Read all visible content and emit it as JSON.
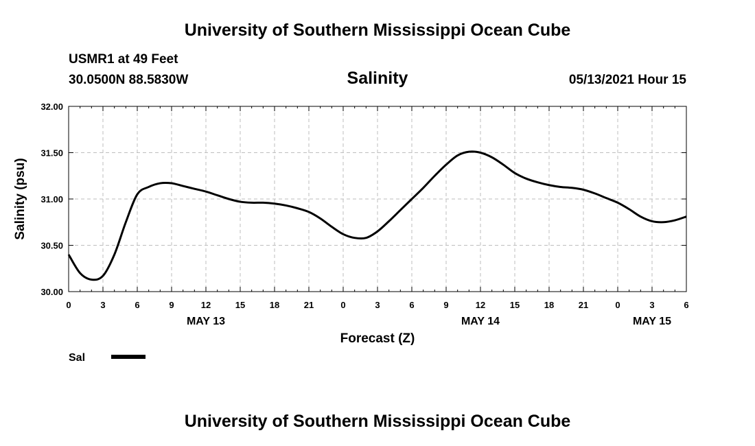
{
  "header": {
    "title": "University of Southern Mississippi Ocean Cube",
    "station": "USMR1 at 49 Feet",
    "coords": "30.0500N  88.5830W",
    "parameter": "Salinity",
    "datetime": "05/13/2021 Hour 15"
  },
  "footer": {
    "title": "University of Southern Mississippi Ocean Cube"
  },
  "chart_data": {
    "type": "line",
    "title": "Salinity",
    "xlabel": "Forecast (Z)",
    "ylabel": "Salinity (psu)",
    "ylim": [
      30.0,
      32.0
    ],
    "xlim": [
      0,
      54
    ],
    "y_ticks": [
      "30.00",
      "30.50",
      "31.00",
      "31.50",
      "32.00"
    ],
    "x_ticks": [
      {
        "x": 0,
        "label": "0"
      },
      {
        "x": 3,
        "label": "3"
      },
      {
        "x": 6,
        "label": "6"
      },
      {
        "x": 9,
        "label": "9"
      },
      {
        "x": 12,
        "label": "12"
      },
      {
        "x": 15,
        "label": "15"
      },
      {
        "x": 18,
        "label": "18"
      },
      {
        "x": 21,
        "label": "21"
      },
      {
        "x": 24,
        "label": "0"
      },
      {
        "x": 27,
        "label": "3"
      },
      {
        "x": 30,
        "label": "6"
      },
      {
        "x": 33,
        "label": "9"
      },
      {
        "x": 36,
        "label": "12"
      },
      {
        "x": 39,
        "label": "15"
      },
      {
        "x": 42,
        "label": "18"
      },
      {
        "x": 45,
        "label": "21"
      },
      {
        "x": 48,
        "label": "0"
      },
      {
        "x": 51,
        "label": "3"
      },
      {
        "x": 54,
        "label": "6"
      }
    ],
    "date_labels": [
      {
        "x": 12,
        "label": "MAY 13"
      },
      {
        "x": 36,
        "label": "MAY 14"
      },
      {
        "x": 51,
        "label": "MAY 15"
      }
    ],
    "grid": true,
    "legend": {
      "position": "bottom-left",
      "entries": [
        "Sal"
      ]
    },
    "series": [
      {
        "name": "Sal",
        "color": "#000000",
        "x": [
          0,
          1,
          2,
          3,
          4,
          5,
          6,
          7,
          8,
          9,
          10,
          11,
          12,
          13,
          14,
          15,
          16,
          17,
          18,
          19,
          20,
          21,
          22,
          23,
          24,
          25,
          26,
          27,
          28,
          29,
          30,
          31,
          32,
          33,
          34,
          35,
          36,
          37,
          38,
          39,
          40,
          41,
          42,
          43,
          44,
          45,
          46,
          47,
          48,
          49,
          50,
          51,
          52,
          53,
          54
        ],
        "y": [
          30.4,
          30.2,
          30.13,
          30.17,
          30.4,
          30.75,
          31.05,
          31.13,
          31.17,
          31.17,
          31.14,
          31.11,
          31.08,
          31.04,
          31.0,
          30.97,
          30.96,
          30.96,
          30.95,
          30.93,
          30.9,
          30.86,
          30.79,
          30.7,
          30.62,
          30.58,
          30.58,
          30.65,
          30.76,
          30.88,
          31.0,
          31.12,
          31.25,
          31.37,
          31.47,
          31.51,
          31.5,
          31.45,
          31.37,
          31.28,
          31.22,
          31.18,
          31.15,
          31.13,
          31.12,
          31.1,
          31.06,
          31.01,
          30.96,
          30.89,
          30.81,
          30.76,
          30.75,
          30.77,
          30.81
        ]
      }
    ]
  }
}
